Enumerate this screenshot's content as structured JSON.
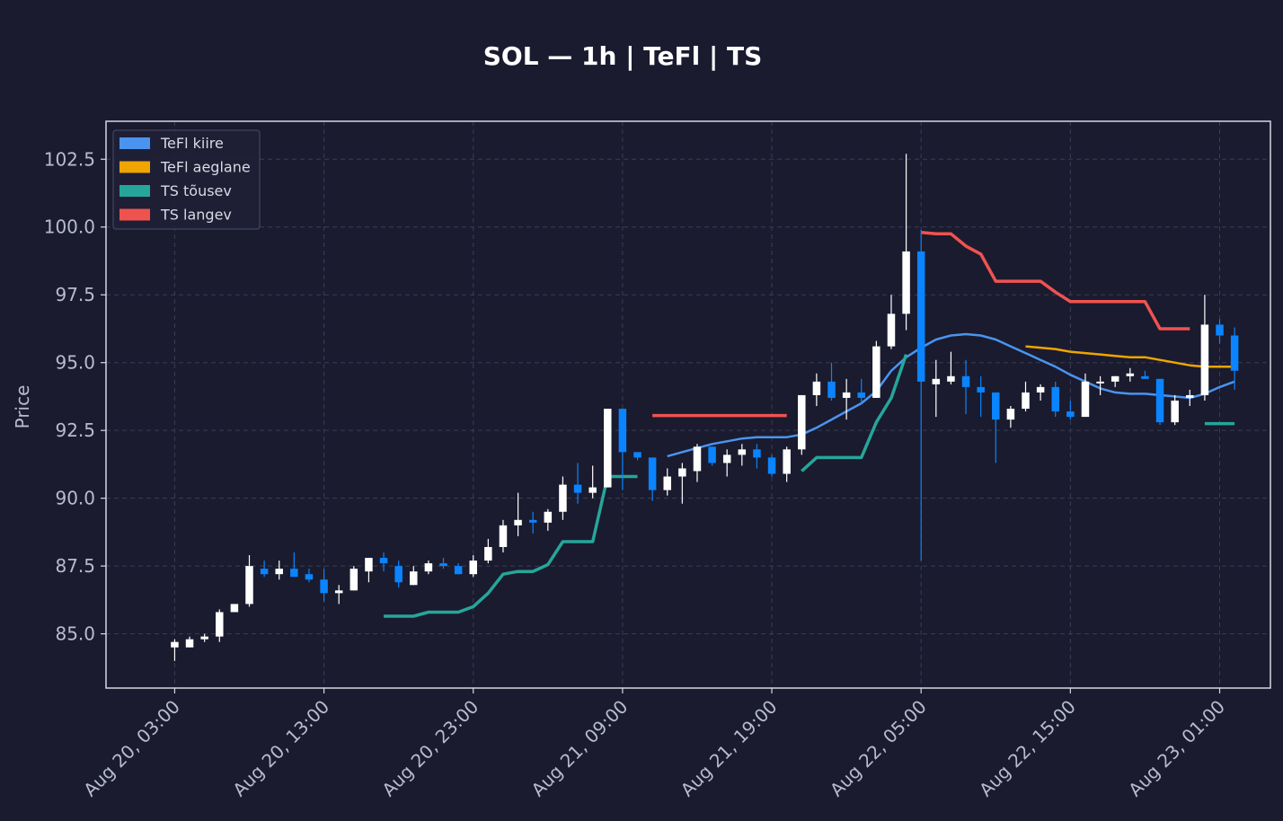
{
  "chart_data": {
    "type": "candlestick",
    "title": "SOL — 1h  |  TeFl  |  TS",
    "xlabel": "",
    "ylabel": "Price",
    "ylim": [
      83.0,
      103.9
    ],
    "yticks": [
      85.0,
      87.5,
      90.0,
      92.5,
      95.0,
      97.5,
      100.0,
      102.5
    ],
    "ytick_labels": [
      "85.0",
      "87.5",
      "90.0",
      "92.5",
      "95.0",
      "97.5",
      "100.0",
      "102.5"
    ],
    "xrange_hours": [
      -4.6,
      73.4
    ],
    "xticks": [
      {
        "hour": 0,
        "label": "Aug 20, 03:00"
      },
      {
        "hour": 10,
        "label": "Aug 20, 13:00"
      },
      {
        "hour": 20,
        "label": "Aug 20, 23:00"
      },
      {
        "hour": 30,
        "label": "Aug 21, 09:00"
      },
      {
        "hour": 40,
        "label": "Aug 21, 19:00"
      },
      {
        "hour": 50,
        "label": "Aug 22, 05:00"
      },
      {
        "hour": 60,
        "label": "Aug 22, 15:00"
      },
      {
        "hour": 70,
        "label": "Aug 23, 01:00"
      }
    ],
    "grid": true,
    "legend_position": "top-left",
    "candles": [
      [
        84.5,
        84.8,
        84.0,
        84.7
      ],
      [
        84.5,
        84.9,
        84.5,
        84.8
      ],
      [
        84.8,
        85.0,
        84.7,
        84.9
      ],
      [
        84.9,
        85.9,
        84.7,
        85.8
      ],
      [
        85.8,
        86.1,
        85.8,
        86.1
      ],
      [
        86.1,
        87.9,
        86.0,
        87.5
      ],
      [
        87.4,
        87.7,
        87.1,
        87.2
      ],
      [
        87.2,
        87.7,
        87.0,
        87.4
      ],
      [
        87.4,
        88.0,
        87.1,
        87.1
      ],
      [
        87.2,
        87.4,
        86.9,
        87.0
      ],
      [
        87.0,
        87.4,
        86.2,
        86.5
      ],
      [
        86.5,
        86.8,
        86.1,
        86.6
      ],
      [
        86.6,
        87.5,
        86.6,
        87.4
      ],
      [
        87.3,
        87.8,
        86.9,
        87.8
      ],
      [
        87.8,
        88.0,
        87.3,
        87.6
      ],
      [
        87.5,
        87.7,
        86.7,
        86.9
      ],
      [
        86.8,
        87.5,
        86.8,
        87.3
      ],
      [
        87.3,
        87.7,
        87.2,
        87.6
      ],
      [
        87.6,
        87.8,
        87.4,
        87.5
      ],
      [
        87.5,
        87.6,
        87.2,
        87.2
      ],
      [
        87.2,
        87.9,
        87.1,
        87.7
      ],
      [
        87.7,
        88.5,
        87.6,
        88.2
      ],
      [
        88.2,
        89.2,
        88.0,
        89.0
      ],
      [
        89.0,
        90.2,
        88.6,
        89.2
      ],
      [
        89.2,
        89.5,
        88.7,
        89.1
      ],
      [
        89.1,
        89.6,
        88.8,
        89.5
      ],
      [
        89.5,
        90.8,
        89.2,
        90.5
      ],
      [
        90.5,
        91.3,
        89.8,
        90.2
      ],
      [
        90.2,
        91.2,
        90.0,
        90.4
      ],
      [
        90.4,
        93.3,
        90.4,
        93.3
      ],
      [
        93.3,
        93.3,
        90.3,
        91.7
      ],
      [
        91.7,
        91.7,
        91.4,
        91.5
      ],
      [
        91.5,
        91.5,
        89.9,
        90.3
      ],
      [
        90.3,
        91.1,
        90.1,
        90.8
      ],
      [
        90.8,
        91.3,
        89.8,
        91.1
      ],
      [
        91.0,
        92.0,
        90.6,
        91.9
      ],
      [
        91.9,
        91.9,
        91.2,
        91.3
      ],
      [
        91.3,
        91.8,
        90.8,
        91.6
      ],
      [
        91.6,
        92.0,
        91.2,
        91.8
      ],
      [
        91.8,
        92.0,
        91.1,
        91.5
      ],
      [
        91.5,
        91.6,
        90.8,
        90.9
      ],
      [
        90.9,
        91.9,
        90.6,
        91.8
      ],
      [
        91.8,
        93.8,
        91.6,
        93.8
      ],
      [
        93.8,
        94.6,
        93.4,
        94.3
      ],
      [
        94.3,
        95.0,
        93.6,
        93.7
      ],
      [
        93.7,
        94.4,
        92.9,
        93.9
      ],
      [
        93.9,
        94.4,
        93.5,
        93.7
      ],
      [
        93.7,
        95.8,
        93.7,
        95.6
      ],
      [
        95.6,
        97.5,
        95.5,
        96.8
      ],
      [
        96.8,
        102.7,
        96.2,
        99.1
      ],
      [
        99.1,
        99.9,
        87.7,
        94.3
      ],
      [
        94.2,
        95.1,
        93.0,
        94.4
      ],
      [
        94.3,
        95.4,
        94.2,
        94.5
      ],
      [
        94.5,
        95.1,
        93.1,
        94.1
      ],
      [
        94.1,
        94.5,
        93.0,
        93.9
      ],
      [
        93.9,
        93.9,
        91.3,
        92.9
      ],
      [
        92.9,
        93.4,
        92.6,
        93.3
      ],
      [
        93.3,
        94.3,
        93.2,
        93.9
      ],
      [
        93.9,
        94.2,
        93.6,
        94.1
      ],
      [
        94.1,
        94.3,
        93.0,
        93.2
      ],
      [
        93.2,
        93.6,
        92.9,
        93.0
      ],
      [
        93.0,
        94.6,
        93.0,
        94.3
      ],
      [
        94.3,
        94.5,
        93.8,
        94.3
      ],
      [
        94.3,
        94.5,
        94.1,
        94.5
      ],
      [
        94.5,
        94.8,
        94.3,
        94.6
      ],
      [
        94.5,
        94.7,
        94.4,
        94.4
      ],
      [
        94.4,
        94.4,
        92.7,
        92.8
      ],
      [
        92.8,
        93.8,
        92.7,
        93.6
      ],
      [
        93.7,
        94.0,
        93.4,
        93.8
      ],
      [
        93.8,
        97.5,
        93.6,
        96.4
      ],
      [
        96.4,
        96.6,
        95.7,
        96.0
      ],
      [
        96.0,
        96.3,
        94.0,
        94.7
      ]
    ],
    "series": [
      {
        "name": "TeFl kiire",
        "color": "#4a94f0",
        "points": [
          [
            33,
            91.55
          ],
          [
            34,
            91.7
          ],
          [
            35,
            91.85
          ],
          [
            36,
            92.0
          ],
          [
            37,
            92.1
          ],
          [
            38,
            92.2
          ],
          [
            39,
            92.25
          ],
          [
            40,
            92.25
          ],
          [
            41,
            92.25
          ],
          [
            42,
            92.35
          ],
          [
            43,
            92.6
          ],
          [
            44,
            92.9
          ],
          [
            45,
            93.2
          ],
          [
            46,
            93.5
          ],
          [
            47,
            93.95
          ],
          [
            48,
            94.7
          ],
          [
            49,
            95.2
          ],
          [
            50,
            95.55
          ],
          [
            51,
            95.85
          ],
          [
            52,
            96.0
          ],
          [
            53,
            96.05
          ],
          [
            54,
            96.0
          ],
          [
            55,
            95.85
          ],
          [
            56,
            95.6
          ],
          [
            57,
            95.35
          ],
          [
            58,
            95.1
          ],
          [
            59,
            94.85
          ],
          [
            60,
            94.55
          ],
          [
            61,
            94.3
          ],
          [
            62,
            94.05
          ],
          [
            63,
            93.9
          ],
          [
            64,
            93.85
          ],
          [
            65,
            93.85
          ],
          [
            66,
            93.8
          ],
          [
            67,
            93.75
          ],
          [
            68,
            93.7
          ],
          [
            69,
            93.85
          ],
          [
            70,
            94.1
          ],
          [
            71,
            94.3
          ]
        ]
      },
      {
        "name": "TeFl aeglane",
        "color": "#f0a500",
        "points": [
          [
            57,
            95.6
          ],
          [
            58,
            95.55
          ],
          [
            59,
            95.5
          ],
          [
            60,
            95.4
          ],
          [
            61,
            95.35
          ],
          [
            62,
            95.3
          ],
          [
            63,
            95.25
          ],
          [
            64,
            95.2
          ],
          [
            65,
            95.2
          ],
          [
            66,
            95.1
          ],
          [
            67,
            95.0
          ],
          [
            68,
            94.9
          ],
          [
            69,
            94.85
          ],
          [
            70,
            94.85
          ],
          [
            71,
            94.85
          ]
        ]
      },
      {
        "name": "TS tõusev",
        "color": "#26a69a",
        "segments": [
          [
            [
              14,
              85.65
            ],
            [
              15,
              85.65
            ],
            [
              16,
              85.65
            ],
            [
              17,
              85.8
            ],
            [
              18,
              85.8
            ],
            [
              19,
              85.8
            ],
            [
              20,
              86.0
            ],
            [
              21,
              86.5
            ],
            [
              22,
              87.2
            ],
            [
              23,
              87.3
            ],
            [
              24,
              87.3
            ],
            [
              25,
              87.55
            ],
            [
              26,
              88.4
            ],
            [
              27,
              88.4
            ],
            [
              28,
              88.4
            ],
            [
              29,
              90.8
            ],
            [
              30,
              90.8
            ],
            [
              31,
              90.8
            ]
          ],
          [
            [
              42,
              91.0
            ],
            [
              43,
              91.5
            ],
            [
              44,
              91.5
            ],
            [
              45,
              91.5
            ],
            [
              46,
              91.5
            ],
            [
              47,
              92.8
            ],
            [
              48,
              93.7
            ],
            [
              49,
              95.3
            ]
          ],
          [
            [
              69,
              92.75
            ],
            [
              70,
              92.75
            ],
            [
              71,
              92.75
            ]
          ]
        ]
      },
      {
        "name": "TS langev",
        "color": "#ef5350",
        "segments": [
          [
            [
              32,
              93.05
            ],
            [
              33,
              93.05
            ],
            [
              34,
              93.05
            ],
            [
              35,
              93.05
            ],
            [
              36,
              93.05
            ],
            [
              37,
              93.05
            ],
            [
              38,
              93.05
            ],
            [
              39,
              93.05
            ],
            [
              40,
              93.05
            ],
            [
              41,
              93.05
            ]
          ],
          [
            [
              50,
              99.8
            ],
            [
              51,
              99.75
            ],
            [
              52,
              99.75
            ],
            [
              53,
              99.3
            ],
            [
              54,
              99.0
            ],
            [
              55,
              98.0
            ],
            [
              56,
              98.0
            ],
            [
              57,
              98.0
            ],
            [
              58,
              98.0
            ],
            [
              59,
              97.6
            ],
            [
              60,
              97.25
            ],
            [
              61,
              97.25
            ],
            [
              62,
              97.25
            ],
            [
              63,
              97.25
            ],
            [
              64,
              97.25
            ],
            [
              65,
              97.25
            ],
            [
              66,
              96.25
            ],
            [
              67,
              96.25
            ],
            [
              68,
              96.25
            ]
          ]
        ]
      }
    ],
    "colors": {
      "up": "#ffffff",
      "down": "#0a84ff",
      "background": "#1a1b2e",
      "frame": "#d6d8e0",
      "grid": "#3a3d55",
      "text": "#b9bccb",
      "title": "#ffffff"
    },
    "legend": [
      {
        "label": "TeFl kiire",
        "color": "#4a94f0"
      },
      {
        "label": "TeFl aeglane",
        "color": "#f0a500"
      },
      {
        "label": "TS tõusev",
        "color": "#26a69a"
      },
      {
        "label": "TS langev",
        "color": "#ef5350"
      }
    ]
  }
}
